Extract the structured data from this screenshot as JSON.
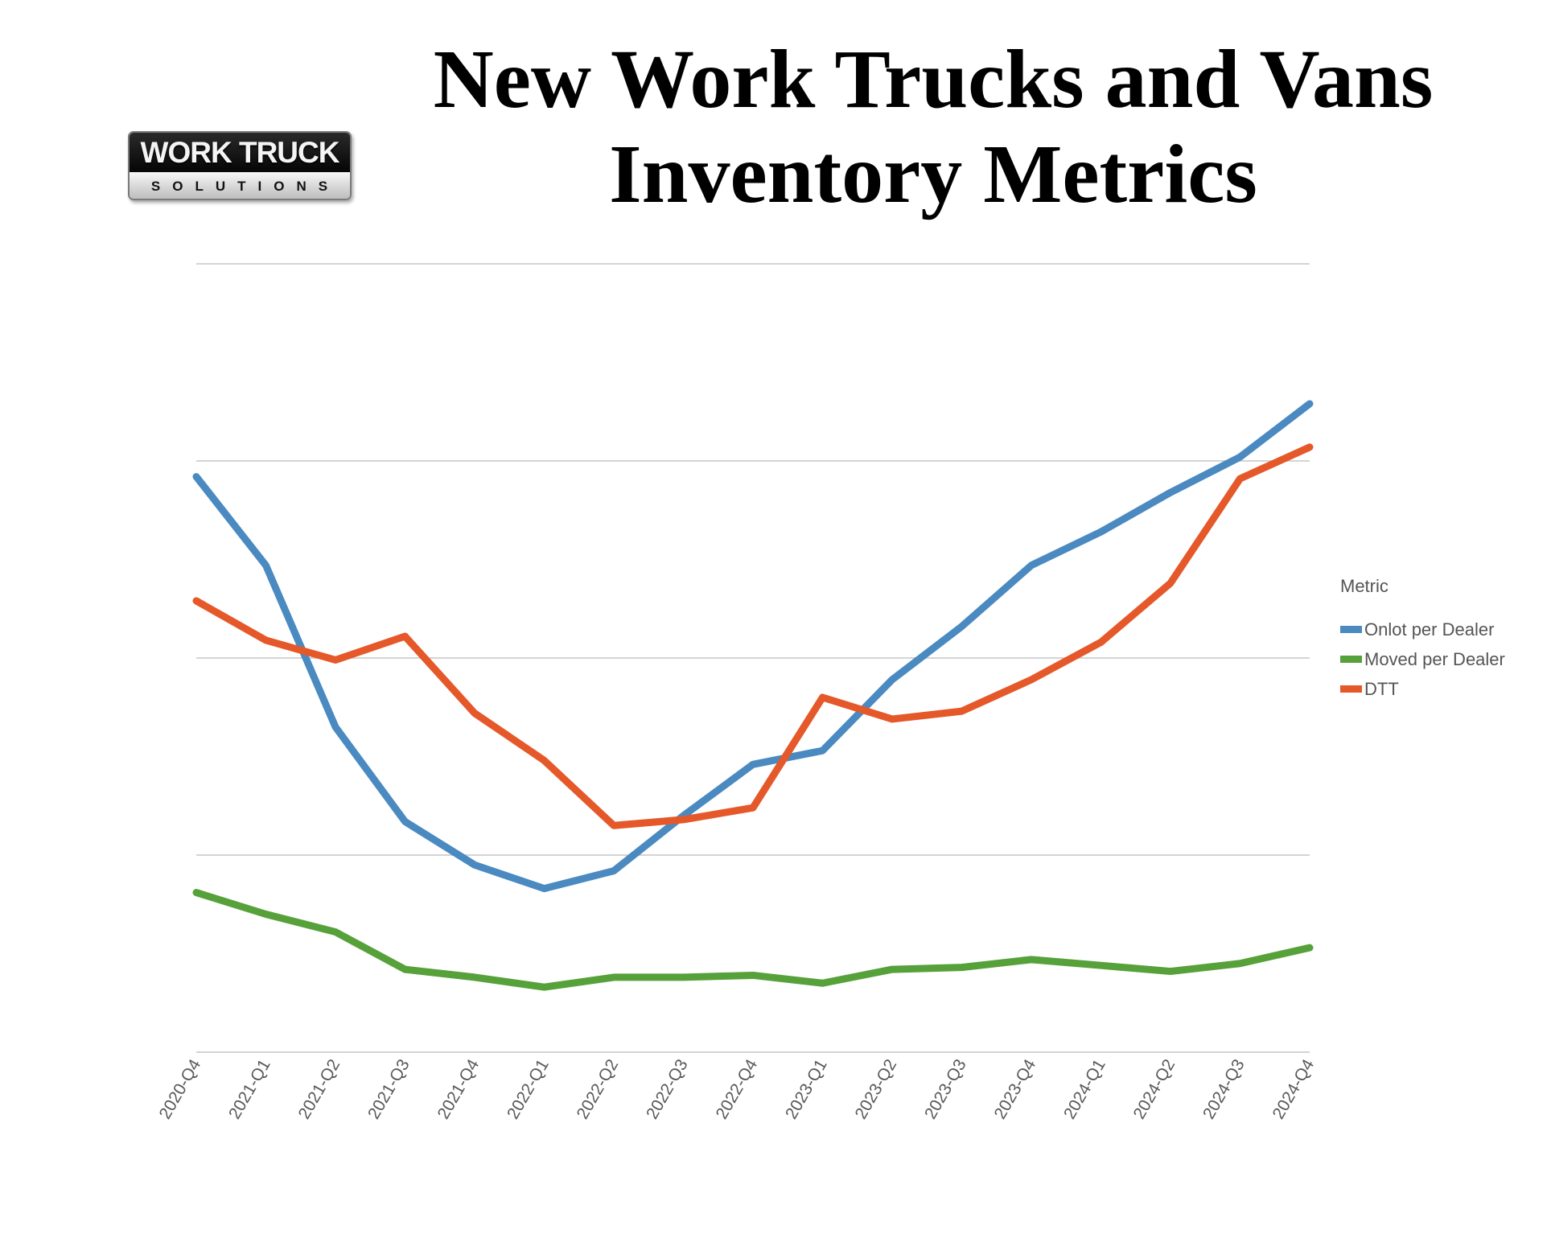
{
  "header": {
    "title_line1": "New Work Trucks and Vans",
    "title_line2": "Inventory Metrics"
  },
  "logo": {
    "line1": "WORK TRUCK",
    "line2": "SOLUTIONS"
  },
  "chart_data": {
    "type": "line",
    "title": "New Work Trucks and Vans Inventory Metrics",
    "xlabel": "",
    "ylabel": "",
    "categories": [
      "2020-Q4",
      "2021-Q1",
      "2021-Q2",
      "2021-Q3",
      "2021-Q4",
      "2022-Q1",
      "2022-Q2",
      "2022-Q3",
      "2022-Q4",
      "2023-Q1",
      "2023-Q2",
      "2023-Q3",
      "2023-Q4",
      "2024-Q1",
      "2024-Q2",
      "2024-Q3",
      "2024-Q4"
    ],
    "ylim": [
      0,
      4
    ],
    "yticks": [
      0,
      1,
      2,
      3,
      4
    ],
    "y_tick_labels_shown": false,
    "grid": true,
    "legend": {
      "title": "Metric",
      "placement": "right"
    },
    "series": [
      {
        "name": "Onlot per Dealer",
        "color": "#4a8ac0",
        "values": [
          2.92,
          2.47,
          1.65,
          1.17,
          0.95,
          0.83,
          0.92,
          1.2,
          1.46,
          1.53,
          1.89,
          2.16,
          2.47,
          2.64,
          2.84,
          3.02,
          3.29
        ]
      },
      {
        "name": "Moved per Dealer",
        "color": "#56a13a",
        "values": [
          0.81,
          0.7,
          0.61,
          0.42,
          0.38,
          0.33,
          0.38,
          0.38,
          0.39,
          0.35,
          0.42,
          0.43,
          0.47,
          0.44,
          0.41,
          0.45,
          0.53
        ]
      },
      {
        "name": "DTT",
        "color": "#e5582a",
        "values": [
          2.29,
          2.09,
          1.99,
          2.11,
          1.72,
          1.48,
          1.15,
          1.18,
          1.24,
          1.8,
          1.69,
          1.73,
          1.89,
          2.08,
          2.38,
          2.91,
          3.07
        ]
      }
    ]
  }
}
